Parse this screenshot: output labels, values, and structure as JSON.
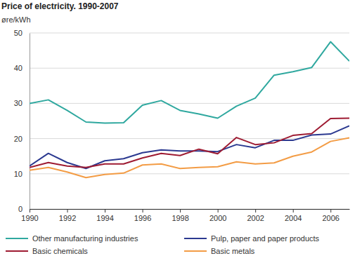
{
  "chart_data": {
    "type": "line",
    "title": "Price of electricity. 1990-2007",
    "y_label": "øre/kWh",
    "x": [
      1990,
      1991,
      1992,
      1993,
      1994,
      1995,
      1996,
      1997,
      1998,
      1999,
      2000,
      2001,
      2002,
      2003,
      2004,
      2005,
      2006,
      2007
    ],
    "series": [
      {
        "name": "Other manufacturing industries",
        "color": "#2fa89f",
        "values": [
          30,
          31,
          28,
          24.7,
          24.4,
          24.5,
          29.5,
          30.8,
          28,
          27,
          25.8,
          29.2,
          31.5,
          38,
          39,
          40.2,
          47.5,
          42
        ]
      },
      {
        "name": "Pulp, paper and paper products",
        "color": "#2b3990",
        "values": [
          12.2,
          15.8,
          13.2,
          11.5,
          13.7,
          14.3,
          16,
          16.8,
          16.5,
          16.5,
          16.3,
          18.3,
          17.4,
          19.5,
          19.5,
          21,
          21.3,
          23.6
        ]
      },
      {
        "name": "Basic chemicals",
        "color": "#9e1b32",
        "values": [
          11.8,
          13.2,
          12.2,
          11.8,
          12.8,
          12.8,
          14.5,
          15.8,
          15.2,
          17,
          15.7,
          20.3,
          18.3,
          18.8,
          20.9,
          21.4,
          25.7,
          25.8
        ]
      },
      {
        "name": "Basic metals",
        "color": "#f39c45",
        "values": [
          11,
          11.8,
          10.5,
          8.9,
          9.8,
          10.2,
          12.5,
          12.8,
          11.5,
          11.8,
          12,
          13.4,
          12.8,
          13.1,
          15,
          16.2,
          19.2,
          20.2
        ]
      }
    ],
    "xlim": [
      1990,
      2007
    ],
    "xticks": [
      1990,
      1992,
      1994,
      1996,
      1998,
      2000,
      2002,
      2004,
      2006
    ],
    "ylim": [
      0,
      50
    ],
    "yticks": [
      0,
      10,
      20,
      30,
      40,
      50
    ],
    "grid": true,
    "legend": "bottom"
  }
}
